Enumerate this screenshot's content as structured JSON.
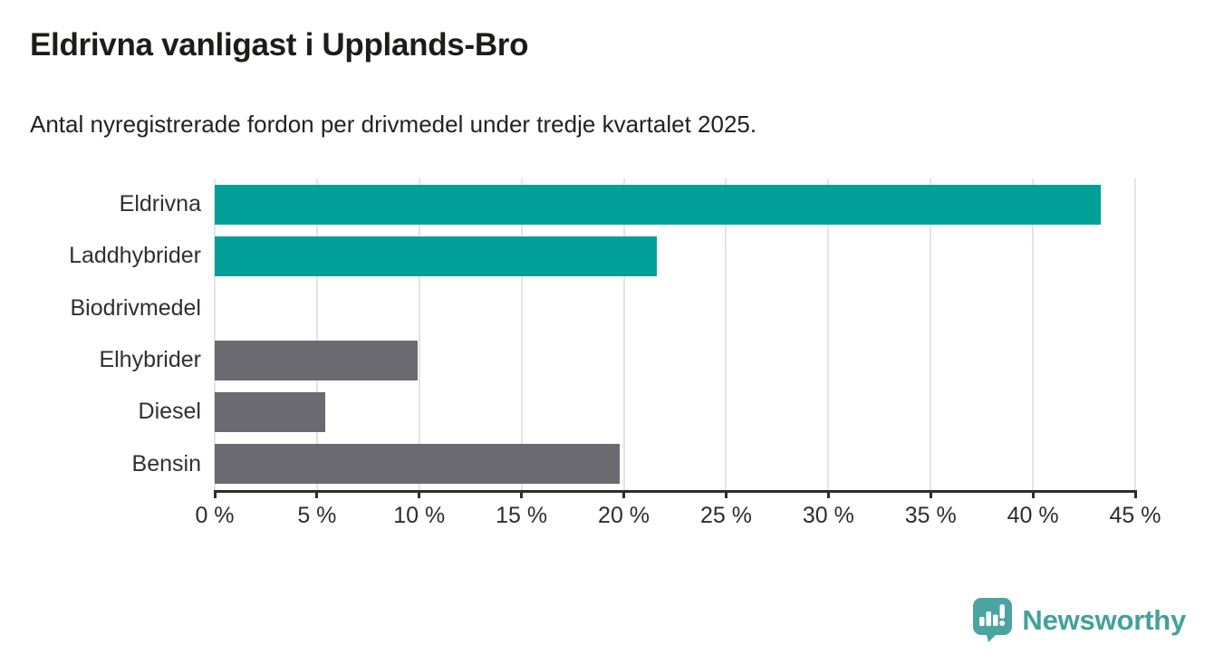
{
  "header": {
    "title": "Eldrivna vanligast i Upplands-Bro",
    "subtitle": "Antal nyregistrerade fordon per drivmedel under tredje kvartalet 2025."
  },
  "chart_data": {
    "type": "bar",
    "orientation": "horizontal",
    "title": "Eldrivna vanligast i Upplands-Bro",
    "subtitle": "Antal nyregistrerade fordon per drivmedel under tredje kvartalet 2025.",
    "categories": [
      "Eldrivna",
      "Laddhybrider",
      "Biodrivmedel",
      "Elhybrider",
      "Diesel",
      "Bensin"
    ],
    "values": [
      43.3,
      21.6,
      0,
      9.9,
      5.4,
      19.8
    ],
    "unit": "%",
    "bar_colors": [
      "#00a099",
      "#00a099",
      "#6a6a70",
      "#6a6a70",
      "#6a6a70",
      "#6a6a70"
    ],
    "x_axis": {
      "min": 0,
      "max": 45,
      "tick_step": 5,
      "tick_labels": [
        "0 %",
        "5 %",
        "10 %",
        "15 %",
        "20 %",
        "25 %",
        "30 %",
        "35 %",
        "40 %",
        "45 %"
      ]
    },
    "xlabel": "",
    "ylabel": "",
    "grid": "vertical-gridlines",
    "legend": "none"
  },
  "footer": {
    "brand": "Newsworthy"
  },
  "colors": {
    "teal_bar": "#00a099",
    "gray_bar": "#6a6a70",
    "gridline": "#e4e4e4",
    "axis": "#2d2d2d",
    "title_text": "#1a1d1a",
    "logo_teal": "#4aa4a1"
  }
}
